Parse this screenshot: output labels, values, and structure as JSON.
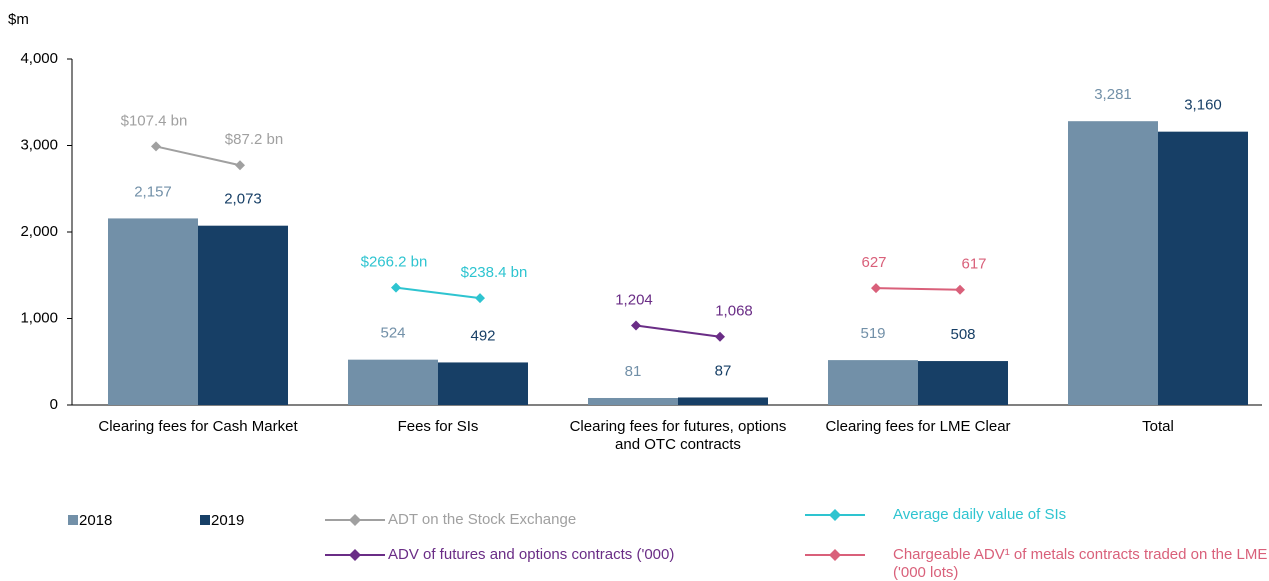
{
  "chart_data": {
    "type": "bar",
    "y_label": "$m",
    "categories": [
      "Clearing fees for Cash Market",
      "Fees for SIs",
      "Clearing fees for futures, options and OTC contracts",
      "Clearing fees for LME Clear",
      "Total"
    ],
    "series": [
      {
        "name": "2018",
        "color": "#7290a8",
        "label_color": "#7290a8",
        "values": [
          2157,
          524,
          81,
          519,
          3281
        ],
        "value_labels": [
          "2,157",
          "524",
          "81",
          "519",
          "3,281"
        ]
      },
      {
        "name": "2019",
        "color": "#173f66",
        "label_color": "#173f66",
        "values": [
          2073,
          492,
          87,
          508,
          3160
        ],
        "value_labels": [
          "2,073",
          "492",
          "87",
          "508",
          "3,160"
        ]
      }
    ],
    "lines": [
      {
        "name": "ADT on the Stock Exchange",
        "color": "#a0a0a0",
        "values": [
          107.4,
          87.2
        ],
        "value_labels": [
          "$107.4 bn",
          "$87.2 bn"
        ]
      },
      {
        "name": "Average daily value of SIs",
        "color": "#2ec4d0",
        "values": [
          266.2,
          238.4
        ],
        "value_labels": [
          "$266.2 bn",
          "$238.4 bn"
        ]
      },
      {
        "name": "ADV of futures and options contracts ('000)",
        "color": "#6a2d86",
        "values": [
          1204,
          1068
        ],
        "value_labels": [
          "1,204",
          "1,068"
        ]
      },
      {
        "name": "Chargeable ADV¹ of metals contracts traded on the LME ('000 lots)",
        "color": "#d9607a",
        "values": [
          627,
          617
        ],
        "value_labels": [
          "627",
          "617"
        ]
      }
    ],
    "ylim": [
      0,
      4000
    ],
    "yticks": [
      0,
      {
        "value": 1000,
        "label": "1,000"
      },
      {
        "value": 2000,
        "label": "2,000"
      },
      {
        "value": 3000,
        "label": "3,000"
      },
      {
        "value": 4000,
        "label": "4,000"
      }
    ],
    "legend": "bottom"
  }
}
